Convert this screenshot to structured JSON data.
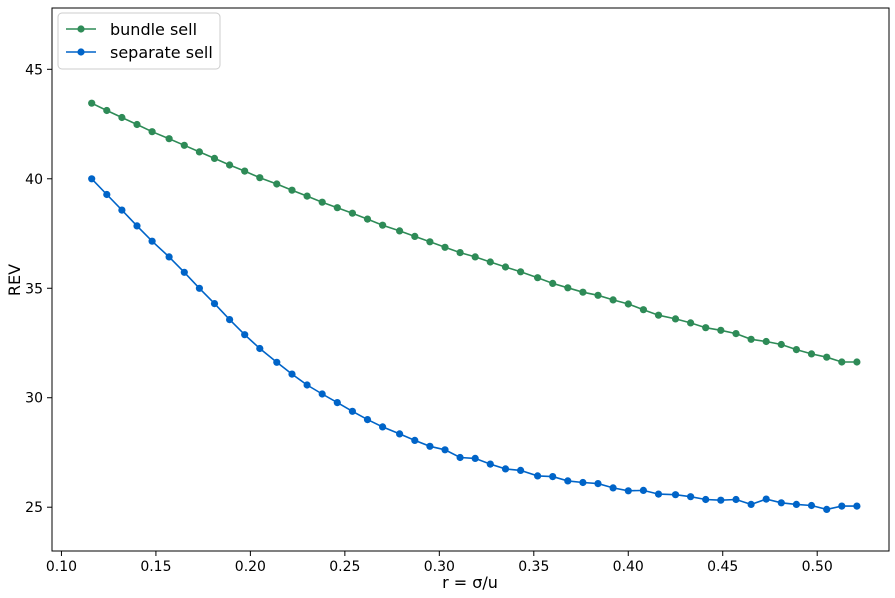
{
  "chart_data": {
    "type": "line",
    "xlabel": "r = σ/u",
    "ylabel": "REV",
    "xlim": [
      0.095,
      0.538
    ],
    "ylim": [
      23.0,
      47.8
    ],
    "xticks": [
      0.1,
      0.15,
      0.2,
      0.25,
      0.3,
      0.35,
      0.4,
      0.45,
      0.5
    ],
    "xtick_labels": [
      "0.10",
      "0.15",
      "0.20",
      "0.25",
      "0.30",
      "0.35",
      "0.40",
      "0.45",
      "0.50"
    ],
    "yticks": [
      25,
      30,
      35,
      40,
      45
    ],
    "ytick_labels": [
      "25",
      "30",
      "35",
      "40",
      "45"
    ],
    "grid": false,
    "legend_position": "top-left",
    "x": [
      0.116,
      0.124,
      0.132,
      0.14,
      0.148,
      0.157,
      0.165,
      0.173,
      0.181,
      0.189,
      0.197,
      0.205,
      0.214,
      0.222,
      0.23,
      0.238,
      0.246,
      0.254,
      0.262,
      0.27,
      0.279,
      0.287,
      0.295,
      0.303,
      0.311,
      0.319,
      0.327,
      0.335,
      0.343,
      0.352,
      0.36,
      0.368,
      0.376,
      0.384,
      0.392,
      0.4,
      0.408,
      0.416,
      0.425,
      0.433,
      0.441,
      0.449,
      0.457,
      0.465,
      0.473,
      0.481,
      0.489,
      0.497,
      0.505,
      0.513,
      0.521
    ],
    "series": [
      {
        "name": "bundle sell",
        "color": "#2e8b57",
        "values": [
          43.45,
          43.12,
          42.8,
          42.48,
          42.15,
          41.83,
          41.53,
          41.23,
          40.93,
          40.63,
          40.35,
          40.05,
          39.76,
          39.48,
          39.21,
          38.93,
          38.68,
          38.43,
          38.16,
          37.88,
          37.62,
          37.37,
          37.12,
          36.87,
          36.63,
          36.43,
          36.2,
          35.97,
          35.75,
          35.48,
          35.22,
          35.02,
          34.82,
          34.68,
          34.47,
          34.28,
          34.02,
          33.77,
          33.6,
          33.42,
          33.2,
          33.08,
          32.93,
          32.67,
          32.57,
          32.43,
          32.2,
          32.0,
          31.85,
          31.63,
          31.63
        ]
      },
      {
        "name": "separate sell",
        "color": "#0064c8",
        "values": [
          40.0,
          39.28,
          38.57,
          37.85,
          37.15,
          36.43,
          35.73,
          35.0,
          34.3,
          33.57,
          32.88,
          32.25,
          31.62,
          31.08,
          30.58,
          30.17,
          29.78,
          29.38,
          29.0,
          28.67,
          28.35,
          28.05,
          27.78,
          27.62,
          27.27,
          27.23,
          26.97,
          26.75,
          26.68,
          26.43,
          26.4,
          26.2,
          26.13,
          26.08,
          25.88,
          25.75,
          25.77,
          25.6,
          25.57,
          25.48,
          25.35,
          25.32,
          25.35,
          25.13,
          25.37,
          25.2,
          25.13,
          25.08,
          24.9,
          25.05,
          25.05
        ]
      }
    ]
  }
}
